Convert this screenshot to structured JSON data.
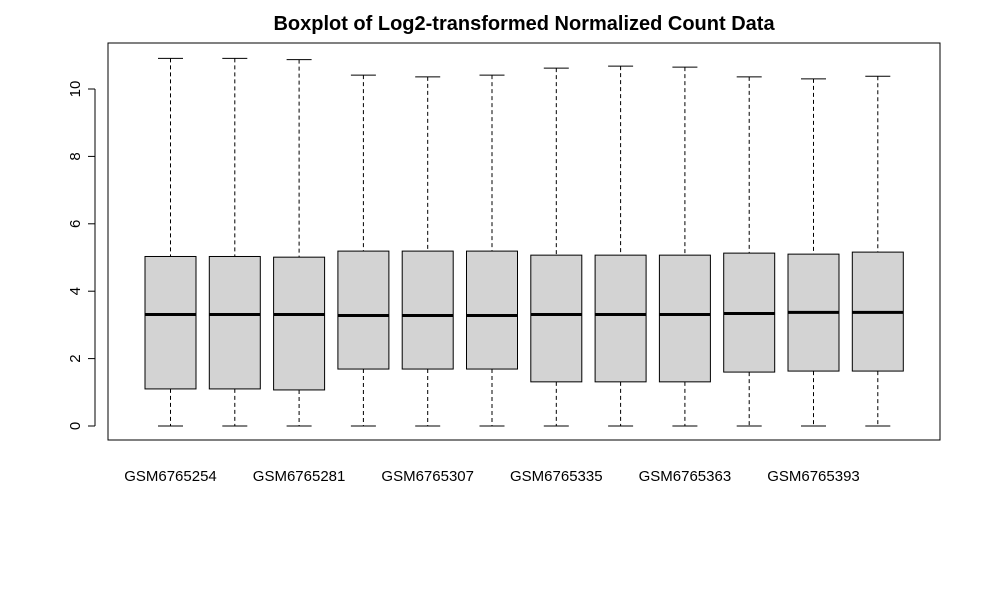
{
  "chart_data": {
    "type": "boxplot",
    "title": "Boxplot of Log2-transformed Normalized Count Data",
    "xlabel": "",
    "ylabel": "",
    "ylim": [
      -0.5,
      11.4
    ],
    "yticks": [
      0,
      2,
      4,
      6,
      8,
      10
    ],
    "x_tick_labels": [
      "GSM6765254",
      "GSM6765281",
      "GSM6765307",
      "GSM6765335",
      "GSM6765363",
      "GSM6765393"
    ],
    "x_tick_label_positions": [
      1,
      3,
      5,
      7,
      9,
      11
    ],
    "box_fill": "#d3d3d3",
    "boxes": [
      {
        "position": 1,
        "min": 0,
        "q1": 1.1,
        "median": 3.31,
        "q3": 5.03,
        "max": 10.91
      },
      {
        "position": 2,
        "min": 0,
        "q1": 1.1,
        "median": 3.31,
        "q3": 5.03,
        "max": 10.91
      },
      {
        "position": 3,
        "min": 0,
        "q1": 1.07,
        "median": 3.31,
        "q3": 5.01,
        "max": 10.87
      },
      {
        "position": 4,
        "min": 0,
        "q1": 1.69,
        "median": 3.28,
        "q3": 5.19,
        "max": 10.41
      },
      {
        "position": 5,
        "min": 0,
        "q1": 1.69,
        "median": 3.28,
        "q3": 5.19,
        "max": 10.36
      },
      {
        "position": 6,
        "min": 0,
        "q1": 1.69,
        "median": 3.28,
        "q3": 5.19,
        "max": 10.41
      },
      {
        "position": 7,
        "min": 0,
        "q1": 1.31,
        "median": 3.31,
        "q3": 5.07,
        "max": 10.62
      },
      {
        "position": 8,
        "min": 0,
        "q1": 1.31,
        "median": 3.31,
        "q3": 5.07,
        "max": 10.68
      },
      {
        "position": 9,
        "min": 0,
        "q1": 1.31,
        "median": 3.31,
        "q3": 5.07,
        "max": 10.65
      },
      {
        "position": 10,
        "min": 0,
        "q1": 1.6,
        "median": 3.34,
        "q3": 5.13,
        "max": 10.36
      },
      {
        "position": 11,
        "min": 0,
        "q1": 1.63,
        "median": 3.37,
        "q3": 5.1,
        "max": 10.3
      },
      {
        "position": 12,
        "min": 0,
        "q1": 1.63,
        "median": 3.37,
        "q3": 5.16,
        "max": 10.38
      }
    ]
  }
}
